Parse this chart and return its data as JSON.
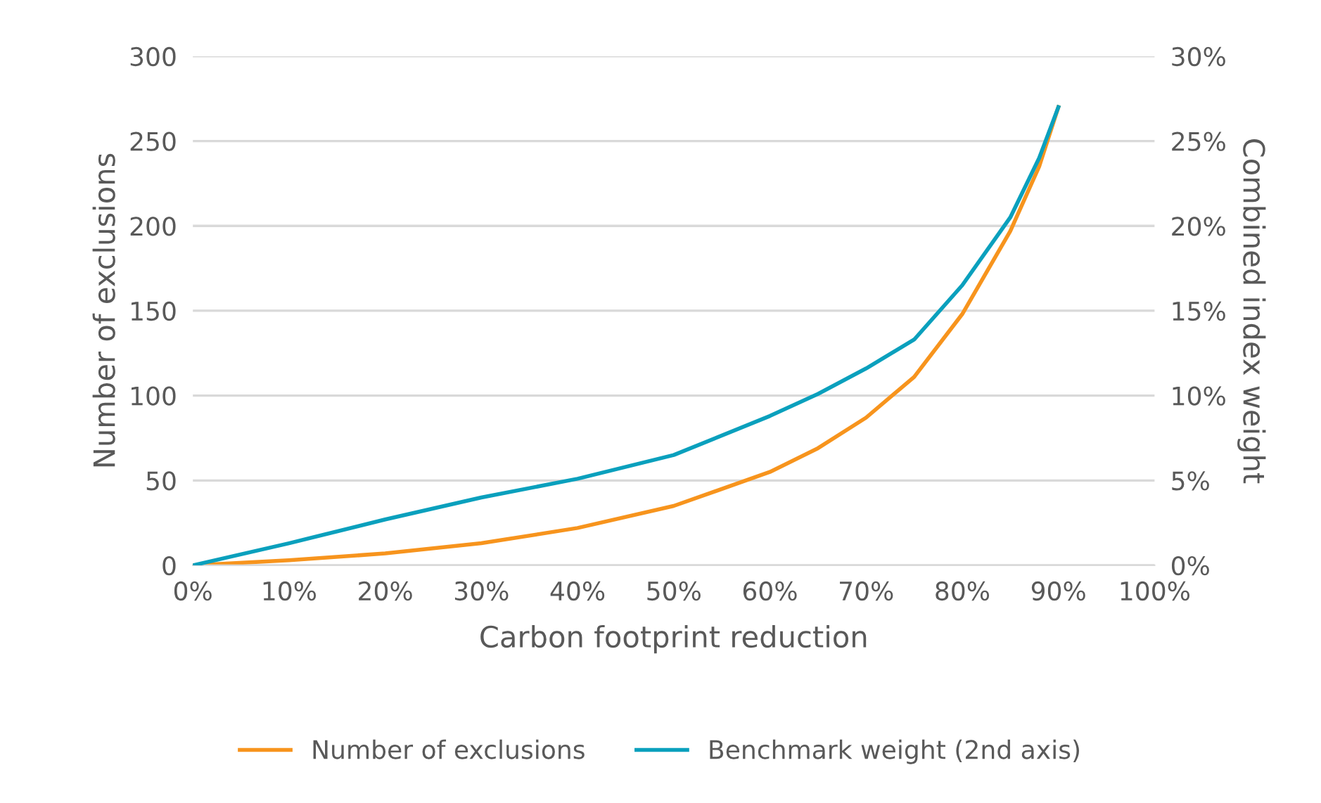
{
  "chart_data": {
    "type": "line",
    "xlabel": "Carbon footprint reduction",
    "ylabel": "Number of exclusions",
    "y2label": "Combined index weight",
    "x": [
      0,
      10,
      20,
      30,
      40,
      50,
      60,
      65,
      70,
      75,
      80,
      85,
      88,
      90
    ],
    "series": [
      {
        "name": "Number of exclusions",
        "color": "#f7941d",
        "values": [
          0,
          3,
          7,
          13,
          22,
          35,
          55,
          69,
          87,
          111,
          148,
          197,
          235,
          270
        ]
      },
      {
        "name": "Benchmark weight (2nd axis)",
        "color": "#0aa0bd",
        "axis": "y2",
        "values": [
          0,
          1.3,
          2.7,
          4.0,
          5.1,
          6.5,
          8.8,
          10.1,
          11.6,
          13.3,
          16.5,
          20.5,
          24,
          27.0
        ]
      }
    ],
    "xlim": [
      0,
      100
    ],
    "xticks": [
      {
        "value": 0,
        "label": "0%"
      },
      {
        "value": 10,
        "label": "10%"
      },
      {
        "value": 20,
        "label": "20%"
      },
      {
        "value": 30,
        "label": "30%"
      },
      {
        "value": 40,
        "label": "40%"
      },
      {
        "value": 50,
        "label": "50%"
      },
      {
        "value": 60,
        "label": "60%"
      },
      {
        "value": 70,
        "label": "70%"
      },
      {
        "value": 80,
        "label": "80%"
      },
      {
        "value": 90,
        "label": "90%"
      },
      {
        "value": 100,
        "label": "100%"
      }
    ],
    "ylim": [
      0,
      300
    ],
    "yticks": [
      0,
      50,
      100,
      150,
      200,
      250,
      300
    ],
    "y2lim": [
      0,
      30
    ],
    "y2ticks": [
      {
        "value": 0,
        "label": "0%"
      },
      {
        "value": 5,
        "label": "5%"
      },
      {
        "value": 10,
        "label": "10%"
      },
      {
        "value": 15,
        "label": "15%"
      },
      {
        "value": 20,
        "label": "20%"
      },
      {
        "value": 25,
        "label": "25%"
      },
      {
        "value": 30,
        "label": "30%"
      }
    ],
    "grid": "y",
    "legend": "bottom",
    "marker": "none",
    "line_style": "solid"
  }
}
